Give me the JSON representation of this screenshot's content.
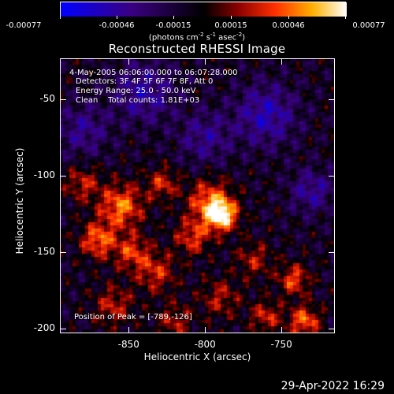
{
  "colorbar": {
    "tick_labels": [
      "-0.00077",
      "-0.00046",
      "-0.00015",
      "0.00015",
      "0.00046",
      "0.00077"
    ],
    "units_main": "(photons cm",
    "units_exp1": "-2",
    "units_mid": " s",
    "units_exp2": "-1",
    "units_mid2": " asec",
    "units_exp3": "-2",
    "units_end": ")"
  },
  "annotations": {
    "time_range": "4-May-2005 06:06:00.000 to 06:07:28.000",
    "detectors": "Detectors: 3F 4F 5F 6F 7F 8F, Att 0",
    "energy_range": "Energy Range: 25.0 - 50.0 keV",
    "clean_counts": "Clean    Total counts: 1.81E+03",
    "peak_position": "Position of Peak = [-789,-126]"
  },
  "timestamp": "29-Apr-2022 16:29",
  "chart_data": {
    "type": "heatmap",
    "title": "Reconstructed RHESSI Image",
    "xlabel": "Heliocentric X (arcsec)",
    "ylabel": "Heliocentric Y (arcsec)",
    "xlim": [
      -895,
      -715
    ],
    "ylim": [
      -203,
      -23
    ],
    "xticks": [
      -850,
      -800,
      -750
    ],
    "yticks": [
      -50,
      -100,
      -150,
      -200
    ],
    "value_range": [
      -0.00077,
      0.00077
    ],
    "peak": [
      -789,
      -126
    ],
    "colormap": [
      "#0000ff",
      "#3a0080",
      "#000000",
      "#8a0000",
      "#ff3000",
      "#ffb000",
      "#ffffff"
    ],
    "sources": [
      {
        "x": -789,
        "y": -126,
        "amp": 1.0,
        "sigma": 7
      },
      {
        "x": -797,
        "y": -117,
        "amp": 0.7,
        "sigma": 10
      },
      {
        "x": -808,
        "y": -140,
        "amp": 0.55,
        "sigma": 8
      },
      {
        "x": -855,
        "y": -120,
        "amp": 0.75,
        "sigma": 10
      },
      {
        "x": -870,
        "y": -142,
        "amp": 0.7,
        "sigma": 8
      },
      {
        "x": -848,
        "y": -150,
        "amp": 0.55,
        "sigma": 8
      },
      {
        "x": -832,
        "y": -163,
        "amp": 0.5,
        "sigma": 9
      },
      {
        "x": -880,
        "y": -105,
        "amp": 0.45,
        "sigma": 8
      },
      {
        "x": -828,
        "y": -105,
        "amp": 0.5,
        "sigma": 7
      },
      {
        "x": -768,
        "y": -155,
        "amp": 0.4,
        "sigma": 8
      },
      {
        "x": -742,
        "y": -168,
        "amp": 0.6,
        "sigma": 7
      },
      {
        "x": -735,
        "y": -195,
        "amp": 0.7,
        "sigma": 7
      },
      {
        "x": -760,
        "y": -192,
        "amp": 0.5,
        "sigma": 7
      },
      {
        "x": -790,
        "y": -180,
        "amp": 0.4,
        "sigma": 9
      },
      {
        "x": -860,
        "y": -185,
        "amp": 0.45,
        "sigma": 9
      },
      {
        "x": -820,
        "y": -195,
        "amp": 0.4,
        "sigma": 8
      },
      {
        "x": -840,
        "y": -45,
        "amp": -0.5,
        "sigma": 14
      },
      {
        "x": -760,
        "y": -60,
        "amp": -0.55,
        "sigma": 14
      },
      {
        "x": -800,
        "y": -75,
        "amp": -0.4,
        "sigma": 12
      },
      {
        "x": -730,
        "y": -110,
        "amp": -0.45,
        "sigma": 10
      },
      {
        "x": -880,
        "y": -70,
        "amp": -0.4,
        "sigma": 12
      }
    ]
  }
}
